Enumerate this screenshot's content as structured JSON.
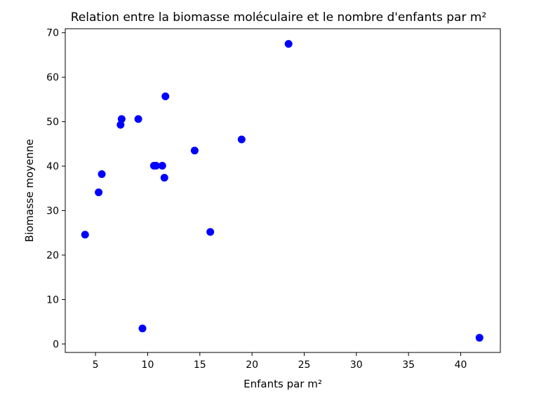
{
  "chart_data": {
    "type": "scatter",
    "title": "Relation entre la biomasse moléculaire et le nombre d'enfants par m²",
    "xlabel": "Enfants par m²",
    "ylabel": "Biomasse moyenne",
    "xlim": [
      2.1,
      43.8
    ],
    "ylim": [
      -1.9,
      70.9
    ],
    "xticks": [
      5,
      10,
      15,
      20,
      25,
      30,
      35,
      40
    ],
    "yticks": [
      0,
      10,
      20,
      30,
      40,
      50,
      60,
      70
    ],
    "grid": false,
    "marker_color": "#0000ff",
    "points": [
      {
        "x": 4.0,
        "y": 24.6
      },
      {
        "x": 5.3,
        "y": 34.1
      },
      {
        "x": 5.6,
        "y": 38.2
      },
      {
        "x": 7.4,
        "y": 49.3
      },
      {
        "x": 7.5,
        "y": 50.6
      },
      {
        "x": 9.1,
        "y": 50.6
      },
      {
        "x": 9.5,
        "y": 3.5
      },
      {
        "x": 10.6,
        "y": 40.1
      },
      {
        "x": 10.8,
        "y": 40.1
      },
      {
        "x": 11.4,
        "y": 40.1
      },
      {
        "x": 11.6,
        "y": 37.4
      },
      {
        "x": 11.7,
        "y": 55.7
      },
      {
        "x": 14.5,
        "y": 43.5
      },
      {
        "x": 16.0,
        "y": 25.2
      },
      {
        "x": 19.0,
        "y": 46.0
      },
      {
        "x": 23.5,
        "y": 67.5
      },
      {
        "x": 41.8,
        "y": 1.4
      }
    ]
  }
}
